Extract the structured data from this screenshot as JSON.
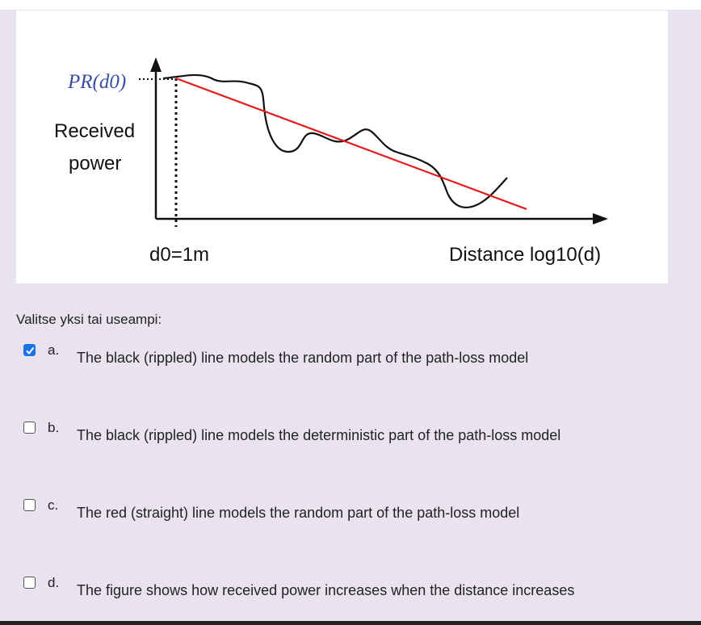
{
  "figure": {
    "y_label_symbol": "PR(d0)",
    "y_label_line1": "Received",
    "y_label_line2": "power",
    "x_marker_label": "d0=1m",
    "x_axis_label": "Distance log10(d)",
    "colors": {
      "deterministic_line": "#e31b1b",
      "random_line": "#111111"
    }
  },
  "question": {
    "prompt": "Valitse yksi tai useampi:",
    "options": [
      {
        "letter": "a.",
        "text": "The black (rippled) line models the random part of the path-loss model",
        "checked": true
      },
      {
        "letter": "b.",
        "text": "The black (rippled) line models the deterministic part of the path-loss model",
        "checked": false
      },
      {
        "letter": "c.",
        "text": "The red (straight) line models the random part of the path-loss model",
        "checked": false
      },
      {
        "letter": "d.",
        "text": "The figure shows how received power increases when the distance increases",
        "checked": false
      }
    ]
  }
}
